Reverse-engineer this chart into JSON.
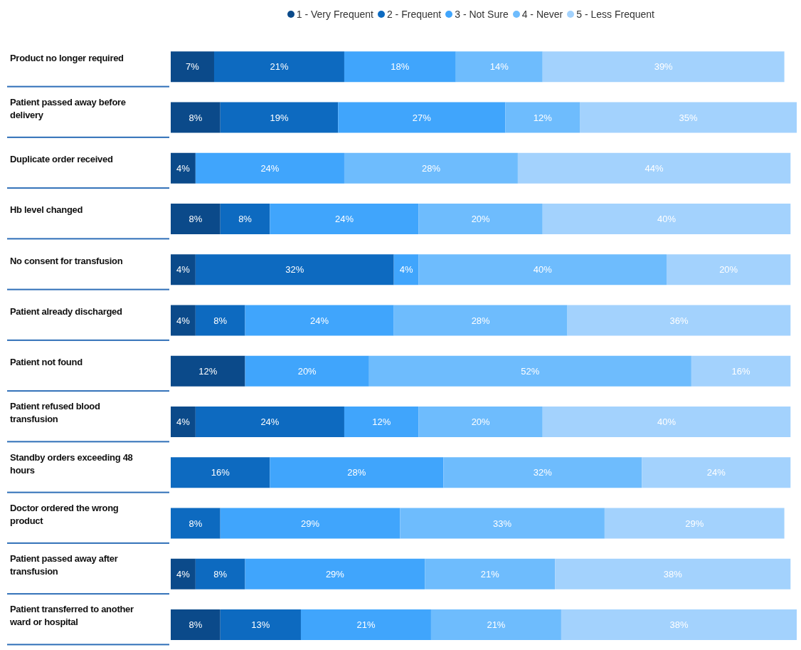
{
  "chart_data": {
    "type": "bar",
    "orientation": "horizontal",
    "stacked": true,
    "legend": "top right",
    "grid": false,
    "tick_labels": "y",
    "categories": [
      "Product no longer required",
      "Patient passed away before delivery",
      "Duplicate order received",
      "Hb level changed",
      "No consent for transfusion",
      "Patient already discharged",
      "Patient not found",
      "Patient refused blood transfusion",
      "Standby orders exceeding 48 hours",
      "Doctor ordered the wrong product",
      "Patient passed away after transfusion",
      "Patient transferred to another ward or hospital"
    ],
    "series": [
      {
        "name": "1 - Very Frequent",
        "color": "#0b4a8a",
        "values": [
          7,
          8,
          4,
          8,
          4,
          4,
          12,
          4,
          null,
          null,
          4,
          8
        ],
        "value_labels": [
          "7%",
          "8%",
          "4%",
          "8%",
          "4%",
          "4%",
          "12%",
          "4%",
          null,
          null,
          "4%",
          "8%"
        ]
      },
      {
        "name": "2 - Frequent",
        "color": "#0d6ac0",
        "values": [
          21,
          19,
          null,
          8,
          32,
          8,
          null,
          24,
          16,
          8,
          8,
          13
        ],
        "value_labels": [
          "21%",
          "19%",
          null,
          "8%",
          "32%",
          "8%",
          null,
          "24%",
          "16%",
          "8%",
          "8%",
          "13%"
        ]
      },
      {
        "name": "3 - Not Sure",
        "color": "#40a5fc",
        "values": [
          18,
          27,
          24,
          24,
          4,
          24,
          20,
          12,
          28,
          29,
          29,
          21
        ],
        "value_labels": [
          "18%",
          "27%",
          "24%",
          "24%",
          "4%",
          "24%",
          "20%",
          "12%",
          "28%",
          "29%",
          "29%",
          "21%"
        ]
      },
      {
        "name": "4 - Never",
        "color": "#6ebcfd",
        "values": [
          14,
          12,
          28,
          20,
          40,
          28,
          52,
          20,
          32,
          33,
          21,
          21
        ],
        "value_labels": [
          "14%",
          "12%",
          "28%",
          "20%",
          "40%",
          "28%",
          "52%",
          "20%",
          "32%",
          "33%",
          "21%",
          "21%"
        ]
      },
      {
        "name": "5 - Less Frequent",
        "color": "#a3d2fd",
        "values": [
          39,
          35,
          44,
          40,
          20,
          36,
          16,
          40,
          24,
          29,
          38,
          38
        ],
        "value_labels": [
          "39%",
          "35%",
          "44%",
          "40%",
          "20%",
          "36%",
          "16%",
          "40%",
          "24%",
          "29%",
          "38%",
          "38%"
        ]
      }
    ]
  }
}
